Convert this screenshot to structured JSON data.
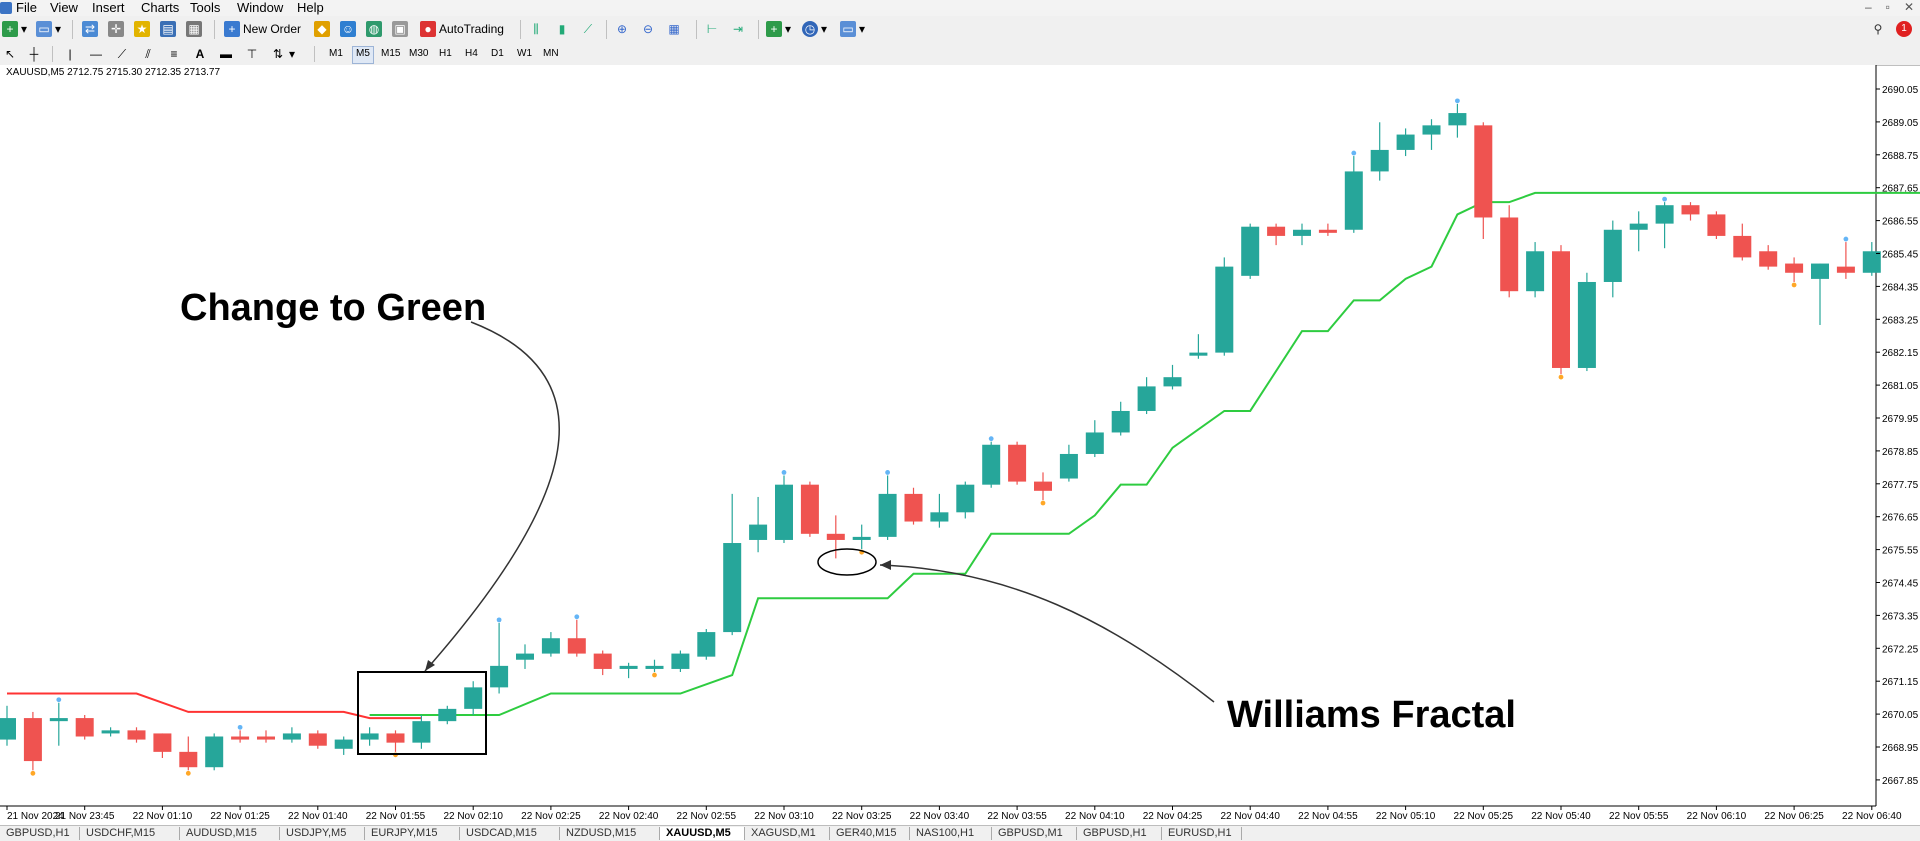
{
  "menu": [
    "File",
    "View",
    "Insert",
    "Charts",
    "Tools",
    "Window",
    "Help"
  ],
  "window_controls": [
    "–",
    "▫",
    "✕"
  ],
  "toolbar": {
    "new_order_label": "New Order",
    "autotrading_label": "AutoTrading",
    "search_icon": "magnifier-icon",
    "notification_badge": "1"
  },
  "timeframes": [
    "M1",
    "M5",
    "M15",
    "M30",
    "H1",
    "H4",
    "D1",
    "W1",
    "MN"
  ],
  "active_timeframe": "M5",
  "chart_header": "XAUUSD,M5  2712.75 2715.30 2712.35 2713.77",
  "colors": {
    "bull": "#26a69a",
    "bear": "#ef5350",
    "fractal_up": "#64b5f6",
    "fractal_down": "#ffa726",
    "trail_red": "#ff3333",
    "trail_green": "#2ecc40"
  },
  "annotations": {
    "change_to_green": "Change to Green",
    "williams_fractal": "Williams Fractal"
  },
  "tabs": [
    "GBPUSD,H1",
    "USDCHF,M15",
    "AUDUSD,M15",
    "USDJPY,M5",
    "EURJPY,M15",
    "USDCAD,M15",
    "NZDUSD,M15",
    "XAUUSD,M5",
    "XAGUSD,M1",
    "GER40,M15",
    "NAS100,H1",
    "GBPUSD,M1",
    "GBPUSD,H1",
    "EURUSD,H1"
  ],
  "active_tab": "XAUUSD,M5",
  "chart_data": {
    "type": "candlestick",
    "symbol": "XAUUSD",
    "timeframe": "M5",
    "ylim": [
      2667.4,
      2691.3
    ],
    "y_ticks": [
      "2690.05",
      "2689.05",
      "2688.75",
      "2687.65",
      "2686.55",
      "2685.45",
      "2684.35",
      "2683.25",
      "2682.15",
      "2681.05",
      "2679.95",
      "2678.85",
      "2677.75",
      "2676.65",
      "2675.55",
      "2674.45",
      "2673.35",
      "2672.25",
      "2671.15",
      "2670.05",
      "2668.95",
      "2667.85"
    ],
    "y_tick_values": [
      2690.05,
      2689.05,
      2688.75,
      2687.65,
      2686.55,
      2685.45,
      2684.35,
      2683.25,
      2682.15,
      2681.05,
      2679.95,
      2678.85,
      2677.75,
      2676.65,
      2675.55,
      2674.45,
      2673.35,
      2672.25,
      2671.15,
      2670.05,
      2668.95,
      2667.85
    ],
    "x_ticks": [
      "21 Nov 2024",
      "21 Nov 23:45",
      "22 Nov 01:10",
      "22 Nov 01:25",
      "22 Nov 01:40",
      "22 Nov 01:55",
      "22 Nov 02:10",
      "22 Nov 02:25",
      "22 Nov 02:40",
      "22 Nov 02:55",
      "22 Nov 03:10",
      "22 Nov 03:25",
      "22 Nov 03:40",
      "22 Nov 03:55",
      "22 Nov 04:10",
      "22 Nov 04:25",
      "22 Nov 04:40",
      "22 Nov 04:55",
      "22 Nov 05:10",
      "22 Nov 05:25",
      "22 Nov 05:40",
      "22 Nov 05:55",
      "22 Nov 06:10",
      "22 Nov 06:25",
      "22 Nov 06:40"
    ],
    "x_tick_index": [
      0,
      3,
      6,
      9,
      12,
      15,
      18,
      21,
      24,
      27,
      30,
      33,
      36,
      39,
      42,
      45,
      48,
      51,
      54,
      57,
      60,
      63,
      66,
      69,
      72
    ],
    "candles": [
      {
        "o": 2669.4,
        "h": 2670.5,
        "l": 2669.2,
        "c": 2670.1
      },
      {
        "o": 2670.1,
        "h": 2670.3,
        "l": 2668.4,
        "c": 2668.7
      },
      {
        "o": 2670.0,
        "h": 2670.6,
        "l": 2669.2,
        "c": 2670.1
      },
      {
        "o": 2670.1,
        "h": 2670.2,
        "l": 2669.4,
        "c": 2669.5
      },
      {
        "o": 2669.6,
        "h": 2669.8,
        "l": 2669.5,
        "c": 2669.7
      },
      {
        "o": 2669.7,
        "h": 2669.8,
        "l": 2669.3,
        "c": 2669.4
      },
      {
        "o": 2669.6,
        "h": 2669.6,
        "l": 2668.8,
        "c": 2669.0
      },
      {
        "o": 2669.0,
        "h": 2669.5,
        "l": 2668.4,
        "c": 2668.5
      },
      {
        "o": 2668.5,
        "h": 2669.6,
        "l": 2668.4,
        "c": 2669.5
      },
      {
        "o": 2669.5,
        "h": 2669.7,
        "l": 2669.3,
        "c": 2669.4
      },
      {
        "o": 2669.5,
        "h": 2669.7,
        "l": 2669.3,
        "c": 2669.4
      },
      {
        "o": 2669.4,
        "h": 2669.8,
        "l": 2669.3,
        "c": 2669.6
      },
      {
        "o": 2669.6,
        "h": 2669.7,
        "l": 2669.1,
        "c": 2669.2
      },
      {
        "o": 2669.1,
        "h": 2669.5,
        "l": 2668.9,
        "c": 2669.4
      },
      {
        "o": 2669.4,
        "h": 2669.8,
        "l": 2669.2,
        "c": 2669.6
      },
      {
        "o": 2669.6,
        "h": 2669.7,
        "l": 2669.0,
        "c": 2669.3
      },
      {
        "o": 2669.3,
        "h": 2670.2,
        "l": 2669.1,
        "c": 2670.0
      },
      {
        "o": 2670.0,
        "h": 2670.5,
        "l": 2669.9,
        "c": 2670.4
      },
      {
        "o": 2670.4,
        "h": 2671.3,
        "l": 2670.2,
        "c": 2671.1
      },
      {
        "o": 2671.1,
        "h": 2673.2,
        "l": 2670.9,
        "c": 2671.8
      },
      {
        "o": 2672.0,
        "h": 2672.5,
        "l": 2671.7,
        "c": 2672.2
      },
      {
        "o": 2672.2,
        "h": 2672.9,
        "l": 2672.1,
        "c": 2672.7
      },
      {
        "o": 2672.7,
        "h": 2673.3,
        "l": 2672.1,
        "c": 2672.2
      },
      {
        "o": 2672.2,
        "h": 2672.3,
        "l": 2671.5,
        "c": 2671.7
      },
      {
        "o": 2671.7,
        "h": 2671.9,
        "l": 2671.4,
        "c": 2671.8
      },
      {
        "o": 2671.7,
        "h": 2672.0,
        "l": 2671.6,
        "c": 2671.8
      },
      {
        "o": 2671.7,
        "h": 2672.3,
        "l": 2671.6,
        "c": 2672.2
      },
      {
        "o": 2672.1,
        "h": 2673.0,
        "l": 2672.0,
        "c": 2672.9
      },
      {
        "o": 2672.9,
        "h": 2677.4,
        "l": 2672.8,
        "c": 2675.8
      },
      {
        "o": 2675.9,
        "h": 2677.3,
        "l": 2675.5,
        "c": 2676.4
      },
      {
        "o": 2675.9,
        "h": 2678.0,
        "l": 2675.8,
        "c": 2677.7
      },
      {
        "o": 2677.7,
        "h": 2677.8,
        "l": 2676.0,
        "c": 2676.1
      },
      {
        "o": 2676.1,
        "h": 2676.7,
        "l": 2675.3,
        "c": 2675.9
      },
      {
        "o": 2675.9,
        "h": 2676.4,
        "l": 2675.6,
        "c": 2676.0
      },
      {
        "o": 2676.0,
        "h": 2678.0,
        "l": 2675.9,
        "c": 2677.4
      },
      {
        "o": 2677.4,
        "h": 2677.6,
        "l": 2676.4,
        "c": 2676.5
      },
      {
        "o": 2676.5,
        "h": 2677.4,
        "l": 2676.3,
        "c": 2676.8
      },
      {
        "o": 2676.8,
        "h": 2677.8,
        "l": 2676.6,
        "c": 2677.7
      },
      {
        "o": 2677.7,
        "h": 2679.1,
        "l": 2677.6,
        "c": 2679.0
      },
      {
        "o": 2679.0,
        "h": 2679.1,
        "l": 2677.7,
        "c": 2677.8
      },
      {
        "o": 2677.8,
        "h": 2678.1,
        "l": 2677.2,
        "c": 2677.5
      },
      {
        "o": 2677.9,
        "h": 2679.0,
        "l": 2677.8,
        "c": 2678.7
      },
      {
        "o": 2678.7,
        "h": 2679.8,
        "l": 2678.6,
        "c": 2679.4
      },
      {
        "o": 2679.4,
        "h": 2680.4,
        "l": 2679.3,
        "c": 2680.1
      },
      {
        "o": 2680.1,
        "h": 2681.2,
        "l": 2680.0,
        "c": 2680.9
      },
      {
        "o": 2680.9,
        "h": 2681.6,
        "l": 2680.8,
        "c": 2681.2
      },
      {
        "o": 2681.9,
        "h": 2682.6,
        "l": 2681.8,
        "c": 2682.0
      },
      {
        "o": 2682.0,
        "h": 2685.1,
        "l": 2681.9,
        "c": 2684.8
      },
      {
        "o": 2684.5,
        "h": 2686.2,
        "l": 2684.4,
        "c": 2686.1
      },
      {
        "o": 2686.1,
        "h": 2686.2,
        "l": 2685.5,
        "c": 2685.8
      },
      {
        "o": 2685.8,
        "h": 2686.2,
        "l": 2685.5,
        "c": 2686.0
      },
      {
        "o": 2686.0,
        "h": 2686.2,
        "l": 2685.8,
        "c": 2685.9
      },
      {
        "o": 2686.0,
        "h": 2688.4,
        "l": 2685.9,
        "c": 2687.9
      },
      {
        "o": 2687.9,
        "h": 2689.5,
        "l": 2687.6,
        "c": 2688.6
      },
      {
        "o": 2688.6,
        "h": 2689.3,
        "l": 2688.4,
        "c": 2689.1
      },
      {
        "o": 2689.1,
        "h": 2689.6,
        "l": 2688.6,
        "c": 2689.4
      },
      {
        "o": 2689.4,
        "h": 2690.1,
        "l": 2689.0,
        "c": 2689.8
      },
      {
        "o": 2689.4,
        "h": 2689.5,
        "l": 2685.7,
        "c": 2686.4
      },
      {
        "o": 2686.4,
        "h": 2686.8,
        "l": 2683.8,
        "c": 2684.0
      },
      {
        "o": 2684.0,
        "h": 2685.6,
        "l": 2683.8,
        "c": 2685.3
      },
      {
        "o": 2685.3,
        "h": 2685.5,
        "l": 2681.3,
        "c": 2681.5
      },
      {
        "o": 2681.5,
        "h": 2684.6,
        "l": 2681.4,
        "c": 2684.3
      },
      {
        "o": 2684.3,
        "h": 2686.3,
        "l": 2683.8,
        "c": 2686.0
      },
      {
        "o": 2686.0,
        "h": 2686.6,
        "l": 2685.3,
        "c": 2686.2
      },
      {
        "o": 2686.2,
        "h": 2686.9,
        "l": 2685.4,
        "c": 2686.8
      },
      {
        "o": 2686.8,
        "h": 2686.9,
        "l": 2686.3,
        "c": 2686.5
      },
      {
        "o": 2686.5,
        "h": 2686.6,
        "l": 2685.7,
        "c": 2685.8
      },
      {
        "o": 2685.8,
        "h": 2686.2,
        "l": 2685.0,
        "c": 2685.1
      },
      {
        "o": 2685.3,
        "h": 2685.5,
        "l": 2684.7,
        "c": 2684.8
      },
      {
        "o": 2684.9,
        "h": 2685.1,
        "l": 2684.3,
        "c": 2684.6
      },
      {
        "o": 2684.4,
        "h": 2684.9,
        "l": 2682.9,
        "c": 2684.9
      },
      {
        "o": 2684.8,
        "h": 2685.6,
        "l": 2684.4,
        "c": 2684.6
      },
      {
        "o": 2684.6,
        "h": 2685.6,
        "l": 2684.5,
        "c": 2685.3
      }
    ],
    "fractals_up": [
      2,
      9,
      19,
      22,
      30,
      34,
      38,
      52,
      56,
      64,
      71
    ],
    "fractals_down": [
      1,
      7,
      15,
      25,
      33,
      40,
      60,
      69
    ],
    "trail_red": [
      [
        0,
        2670.9
      ],
      [
        5,
        2670.9
      ],
      [
        7,
        2670.3
      ],
      [
        13,
        2670.3
      ],
      [
        14,
        2670.1
      ],
      [
        16,
        2670.1
      ]
    ],
    "trail_green": [
      [
        14,
        2670.2
      ],
      [
        19,
        2670.2
      ],
      [
        21,
        2670.9
      ],
      [
        26,
        2670.9
      ],
      [
        28,
        2671.5
      ],
      [
        29,
        2674.0
      ],
      [
        34,
        2674.0
      ],
      [
        35,
        2674.8
      ],
      [
        37,
        2674.8
      ],
      [
        38,
        2676.1
      ],
      [
        41,
        2676.1
      ],
      [
        42,
        2676.7
      ],
      [
        43,
        2677.7
      ],
      [
        44,
        2677.7
      ],
      [
        45,
        2678.9
      ],
      [
        47,
        2680.1
      ],
      [
        48,
        2680.1
      ],
      [
        50,
        2682.7
      ],
      [
        51,
        2682.7
      ],
      [
        52,
        2683.7
      ],
      [
        53,
        2683.7
      ],
      [
        54,
        2684.4
      ],
      [
        55,
        2684.8
      ],
      [
        56,
        2686.5
      ],
      [
        57,
        2686.9
      ],
      [
        58,
        2686.9
      ],
      [
        59,
        2687.2
      ],
      [
        74,
        2687.2
      ]
    ]
  }
}
